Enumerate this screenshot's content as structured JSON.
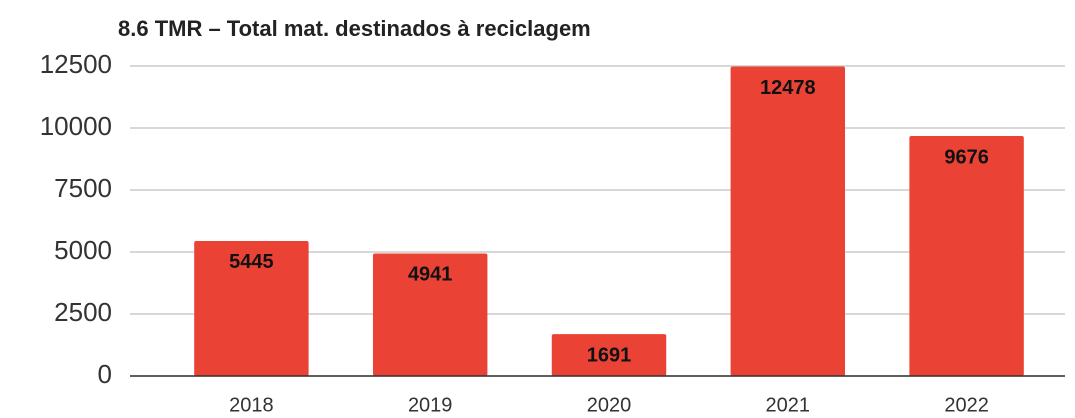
{
  "chart_data": {
    "type": "bar",
    "title": "8.6 TMR – Total mat. destinados à reciclagem",
    "categories": [
      "2018",
      "2019",
      "2020",
      "2021",
      "2022"
    ],
    "values": [
      5445,
      4941,
      1691,
      12478,
      9676
    ],
    "color": "#ea4335",
    "ylim": [
      0,
      12500
    ],
    "yticks": [
      0,
      2500,
      5000,
      7500,
      10000,
      12500
    ],
    "grid": true
  }
}
